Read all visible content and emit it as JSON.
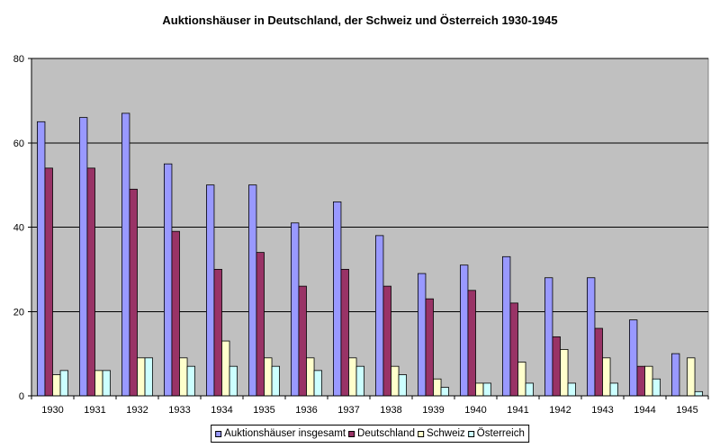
{
  "chart_data": {
    "type": "bar",
    "title": "Auktionshäuser in Deutschland, der Schweiz und Österreich 1930-1945",
    "categories": [
      "1930",
      "1931",
      "1932",
      "1933",
      "1934",
      "1935",
      "1936",
      "1937",
      "1938",
      "1939",
      "1940",
      "1941",
      "1942",
      "1943",
      "1944",
      "1945"
    ],
    "ylim": [
      0,
      80
    ],
    "yticks": [
      0,
      20,
      40,
      60,
      80
    ],
    "grid": true,
    "legend": "bottom",
    "plot_background": "#c0c0c0",
    "series": [
      {
        "name": "Auktionshäuser insgesamt",
        "color": "#9999ff",
        "values": [
          65,
          66,
          67,
          55,
          50,
          50,
          41,
          46,
          38,
          29,
          31,
          33,
          28,
          28,
          18,
          10
        ]
      },
      {
        "name": "Deutschland",
        "color": "#993366",
        "values": [
          54,
          54,
          49,
          39,
          30,
          34,
          26,
          30,
          26,
          23,
          25,
          22,
          14,
          16,
          7,
          0
        ]
      },
      {
        "name": "Schweiz",
        "color": "#ffffcc",
        "values": [
          5,
          6,
          9,
          9,
          13,
          9,
          9,
          9,
          7,
          4,
          3,
          8,
          11,
          9,
          7,
          9
        ]
      },
      {
        "name": "Österreich",
        "color": "#ccffff",
        "values": [
          6,
          6,
          9,
          7,
          7,
          7,
          6,
          7,
          5,
          2,
          3,
          3,
          3,
          3,
          4,
          1
        ]
      }
    ]
  }
}
